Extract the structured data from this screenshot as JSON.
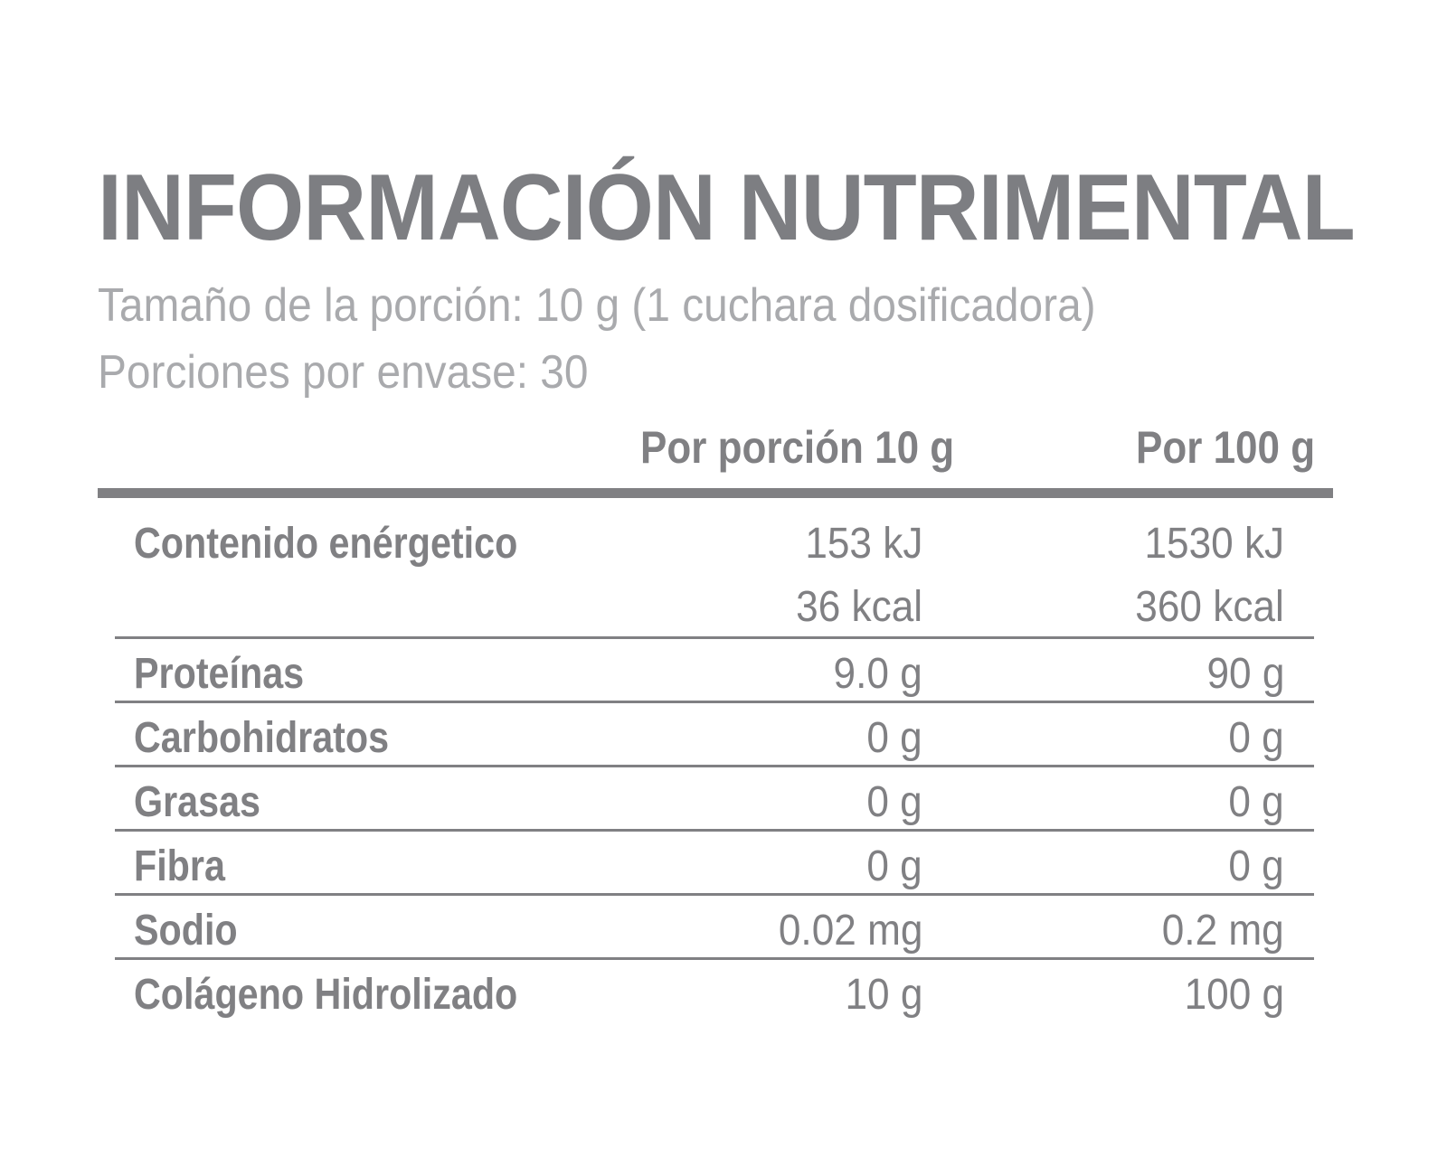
{
  "title": "INFORMACIÓN NUTRIMENTAL",
  "serving_size": "Tamaño de la porción: 10 g (1 cuchara dosificadora)",
  "servings_per_container": "Porciones por envase: 30",
  "columns": {
    "per_portion": "Por porción 10 g",
    "per_100": "Por 100 g"
  },
  "rows": [
    {
      "name": "Contenido enérgetico",
      "per_portion": "153 kJ",
      "per_100": "1530 kJ",
      "per_portion_2": "36 kcal",
      "per_100_2": "360 kcal"
    },
    {
      "name": "Proteínas",
      "per_portion": "9.0 g",
      "per_100": "90 g"
    },
    {
      "name": "Carbohidratos",
      "per_portion": "0 g",
      "per_100": "0 g"
    },
    {
      "name": "Grasas",
      "per_portion": "0 g",
      "per_100": "0 g"
    },
    {
      "name": "Fibra",
      "per_portion": "0 g",
      "per_100": "0 g"
    },
    {
      "name": "Sodio",
      "per_portion": "0.02 mg",
      "per_100": "0.2 mg"
    },
    {
      "name": "Colágeno Hidrolizado",
      "per_portion": "10 g",
      "per_100": "100 g"
    }
  ]
}
